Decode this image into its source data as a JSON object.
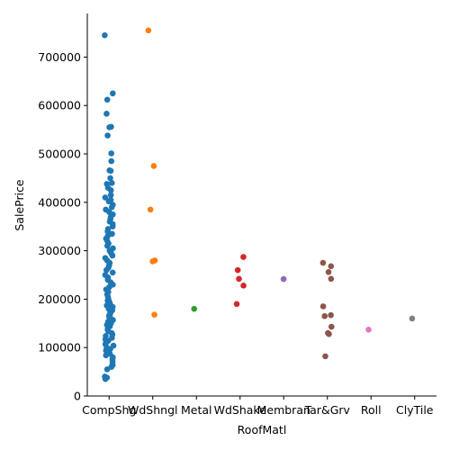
{
  "chart_data": {
    "type": "strip",
    "x_label": "RoofMatl",
    "y_label": "SalePrice",
    "categories": [
      "CompShg",
      "WdShngl",
      "Metal",
      "WdShake",
      "Membran",
      "Tar&Grv",
      "Roll",
      "ClyTile"
    ],
    "colors": [
      "#1f77b4",
      "#ff7f0e",
      "#2ca02c",
      "#d62728",
      "#9467bd",
      "#8c564b",
      "#e377c2",
      "#7f7f7f"
    ],
    "values": [
      [
        745000,
        625000,
        612000,
        583000,
        556000,
        555000,
        538000,
        501000,
        485000,
        466000,
        465000,
        450000,
        440000,
        438000,
        430000,
        425000,
        415000,
        410000,
        405000,
        402000,
        395000,
        390000,
        385000,
        380000,
        375000,
        370000,
        365000,
        360000,
        355000,
        350000,
        345000,
        340000,
        335000,
        330000,
        325000,
        320000,
        315000,
        310000,
        305000,
        300000,
        295000,
        290000,
        285000,
        280000,
        275000,
        270000,
        265000,
        260000,
        255000,
        250000,
        245000,
        240000,
        235000,
        230000,
        225000,
        220000,
        215000,
        210000,
        205000,
        200000,
        197000,
        194000,
        190000,
        187000,
        184000,
        180000,
        177000,
        174000,
        170000,
        167000,
        164000,
        160000,
        157000,
        154000,
        150000,
        147000,
        144000,
        140000,
        137000,
        134000,
        130000,
        127000,
        124000,
        120000,
        117000,
        114000,
        110000,
        107000,
        104000,
        100000,
        97000,
        94000,
        90000,
        87000,
        84000,
        80000,
        76000,
        72000,
        68000,
        64000,
        60000,
        55000,
        40000,
        38000,
        35000
      ],
      [
        755000,
        475000,
        385000,
        280000,
        278000,
        168000
      ],
      [
        180000
      ],
      [
        287000,
        260000,
        242000,
        228000,
        190000
      ],
      [
        241500
      ],
      [
        275000,
        268000,
        256000,
        242000,
        185000,
        167000,
        165000,
        143000,
        130000,
        128000,
        82000
      ],
      [
        137000
      ],
      [
        160000
      ]
    ],
    "ylim": [
      0,
      790000
    ],
    "yticks": [
      0,
      100000,
      200000,
      300000,
      400000,
      500000,
      600000,
      700000
    ]
  }
}
